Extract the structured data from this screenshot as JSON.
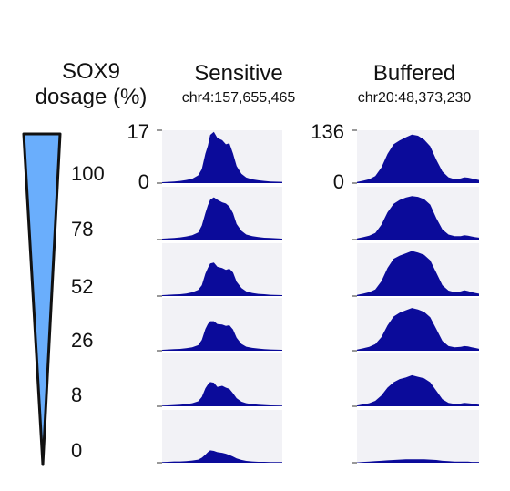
{
  "dosage_panel": {
    "title_line1": "SOX9",
    "title_line2": "dosage (%)",
    "levels": [
      "100",
      "78",
      "52",
      "26",
      "8",
      "0"
    ],
    "wedge_fill": "#6aaefc",
    "wedge_stroke": "#111111"
  },
  "chart_data": [
    {
      "type": "area",
      "title": "Sensitive",
      "subtitle": "chr4:157,655,465",
      "ylim": [
        0,
        17
      ],
      "y_tick_labels": [
        "17",
        "0"
      ],
      "color": "#0b0b9a",
      "rows": [
        "100",
        "78",
        "52",
        "26",
        "8",
        "0"
      ],
      "x": [
        0.0,
        0.05,
        0.1,
        0.15,
        0.2,
        0.25,
        0.3,
        0.33,
        0.36,
        0.38,
        0.4,
        0.43,
        0.46,
        0.5,
        0.53,
        0.56,
        0.59,
        0.62,
        0.66,
        0.7,
        0.75,
        0.8,
        0.85,
        0.9,
        1.0
      ],
      "series": [
        {
          "values": [
            0.3,
            0.4,
            0.5,
            0.7,
            1.0,
            1.4,
            2.5,
            4.5,
            9.5,
            12.0,
            15.5,
            16.5,
            14.5,
            13.8,
            12.5,
            12.8,
            9.5,
            5.5,
            3.0,
            1.8,
            1.2,
            0.9,
            0.7,
            0.5,
            0.4
          ]
        },
        {
          "values": [
            0.3,
            0.4,
            0.5,
            0.7,
            1.0,
            1.4,
            2.3,
            4.5,
            8.5,
            11.0,
            12.8,
            13.6,
            12.8,
            12.0,
            11.6,
            10.6,
            8.5,
            5.0,
            2.8,
            1.6,
            1.1,
            0.8,
            0.6,
            0.5,
            0.3
          ]
        },
        {
          "values": [
            0.3,
            0.4,
            0.5,
            0.6,
            0.8,
            1.2,
            2.0,
            3.5,
            7.2,
            9.0,
            10.5,
            10.8,
            9.4,
            9.0,
            8.4,
            8.8,
            7.6,
            4.6,
            2.6,
            1.5,
            1.0,
            0.7,
            0.6,
            0.4,
            0.3
          ]
        },
        {
          "values": [
            0.3,
            0.4,
            0.5,
            0.6,
            0.8,
            1.1,
            1.8,
            3.5,
            7.0,
            8.6,
            9.5,
            9.5,
            8.6,
            8.4,
            8.0,
            8.2,
            6.8,
            4.2,
            2.2,
            1.3,
            0.9,
            0.7,
            0.5,
            0.4,
            0.3
          ]
        },
        {
          "values": [
            0.2,
            0.3,
            0.4,
            0.5,
            0.7,
            1.0,
            1.6,
            3.0,
            5.8,
            7.0,
            7.8,
            7.6,
            6.2,
            6.6,
            6.0,
            5.6,
            4.2,
            2.6,
            1.5,
            1.0,
            0.7,
            0.5,
            0.4,
            0.3,
            0.2
          ]
        },
        {
          "values": [
            0.2,
            0.3,
            0.4,
            0.4,
            0.5,
            0.7,
            1.0,
            1.6,
            2.6,
            3.4,
            4.0,
            3.8,
            3.4,
            3.2,
            2.9,
            2.5,
            2.0,
            1.4,
            0.9,
            0.6,
            0.4,
            0.3,
            0.3,
            0.2,
            0.2
          ]
        }
      ]
    },
    {
      "type": "area",
      "title": "Buffered",
      "subtitle": "chr20:48,373,230",
      "ylim": [
        0,
        136
      ],
      "y_tick_labels": [
        "136",
        "0"
      ],
      "color": "#0b0b9a",
      "rows": [
        "100",
        "78",
        "52",
        "26",
        "8",
        "0"
      ],
      "x": [
        0.0,
        0.05,
        0.1,
        0.15,
        0.2,
        0.25,
        0.3,
        0.35,
        0.4,
        0.45,
        0.5,
        0.55,
        0.6,
        0.65,
        0.7,
        0.75,
        0.8,
        0.85,
        0.88,
        0.91,
        0.94,
        0.97,
        1.0
      ],
      "series": [
        {
          "values": [
            3,
            6,
            10,
            18,
            40,
            75,
            100,
            110,
            118,
            125,
            122,
            112,
            95,
            60,
            30,
            15,
            10,
            12,
            15,
            14,
            12,
            10,
            8
          ]
        },
        {
          "values": [
            3,
            6,
            10,
            17,
            38,
            70,
            92,
            102,
            108,
            112,
            110,
            104,
            90,
            55,
            26,
            13,
            9,
            9,
            11,
            10,
            8,
            6,
            5
          ]
        },
        {
          "values": [
            3,
            6,
            10,
            17,
            38,
            72,
            96,
            104,
            110,
            116,
            112,
            106,
            92,
            60,
            28,
            14,
            10,
            12,
            15,
            13,
            10,
            8,
            6
          ]
        },
        {
          "values": [
            3,
            6,
            10,
            17,
            35,
            65,
            88,
            98,
            104,
            110,
            106,
            100,
            86,
            56,
            25,
            12,
            9,
            10,
            12,
            11,
            9,
            7,
            5
          ]
        },
        {
          "values": [
            2,
            5,
            8,
            14,
            28,
            48,
            62,
            70,
            74,
            80,
            76,
            72,
            62,
            40,
            18,
            9,
            6,
            7,
            9,
            8,
            7,
            5,
            4
          ]
        },
        {
          "values": [
            1,
            2,
            3,
            4,
            5,
            6,
            7,
            8,
            9,
            9,
            9,
            9,
            8,
            7,
            5,
            4,
            3,
            3,
            3,
            3,
            2,
            2,
            2
          ]
        }
      ]
    }
  ]
}
